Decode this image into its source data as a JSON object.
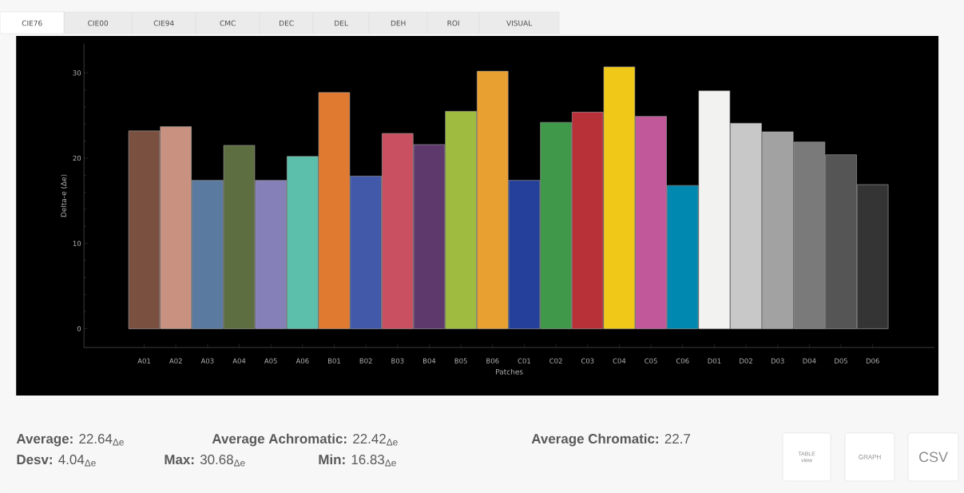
{
  "chart_data": {
    "type": "bar",
    "xlabel": "Patches",
    "ylabel": "Delta-e (Δe)",
    "categories": [
      "A01",
      "A02",
      "A03",
      "A04",
      "A05",
      "A06",
      "B01",
      "B02",
      "B03",
      "B04",
      "B05",
      "B06",
      "C01",
      "C02",
      "C03",
      "C04",
      "C05",
      "C06",
      "D01",
      "D02",
      "D03",
      "D04",
      "D05",
      "D06"
    ],
    "values": [
      23.2,
      23.7,
      17.4,
      21.5,
      17.4,
      20.2,
      27.7,
      17.9,
      22.9,
      21.6,
      25.5,
      30.2,
      17.4,
      24.2,
      25.4,
      30.7,
      24.9,
      16.8,
      27.9,
      24.1,
      23.1,
      21.9,
      20.4,
      16.9
    ],
    "colors": [
      "#7a5040",
      "#c99280",
      "#5b7aa0",
      "#5d6e40",
      "#8580b8",
      "#5cbfab",
      "#e07a30",
      "#4258a8",
      "#c85060",
      "#5e3a6c",
      "#a0bc40",
      "#e8a030",
      "#24409a",
      "#40984a",
      "#b83038",
      "#f0c818",
      "#c0589a",
      "#0088b0",
      "#f2f2f0",
      "#c8c8c8",
      "#a2a2a2",
      "#7a7a7a",
      "#555555",
      "#343434"
    ],
    "ylim": [
      -2.2,
      33.4
    ],
    "yticks": [
      0,
      10,
      20,
      30
    ],
    "annotations": [
      "CIE76",
      "CIE00",
      "CIE94",
      "CMC",
      "DEC",
      "DEL",
      "DEH",
      "ROI",
      "VISUAL",
      "**Average:** 22.64$_{Δe}$",
      "**Average Achromatic:** 22.42$_{Δe}$",
      "**Average Chromatic:** 22.7",
      "**Desv:** 4.04$_{Δe}$",
      "**Max:** 30.68$_{Δe}$",
      "**Min:** 16.83$_{Δe}$",
      "TABLE view",
      "GRAPH",
      "CSV"
    ]
  }
}
